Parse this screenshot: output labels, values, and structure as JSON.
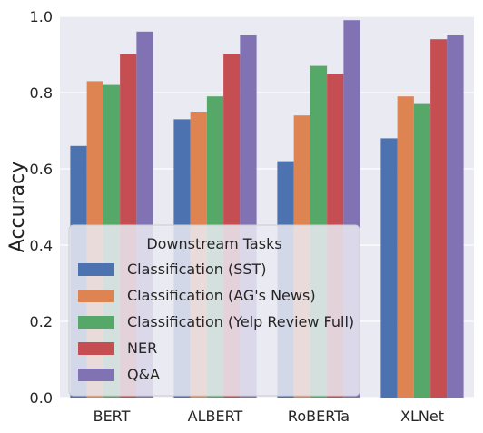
{
  "chart_data": {
    "type": "bar",
    "title": "",
    "xlabel": "",
    "ylabel": "Accuracy",
    "ylim": [
      0.0,
      1.0
    ],
    "yticks": [
      "0.0",
      "0.2",
      "0.4",
      "0.6",
      "0.8",
      "1.0"
    ],
    "grid": true,
    "categories": [
      "BERT",
      "ALBERT",
      "RoBERTa",
      "XLNet"
    ],
    "series": [
      {
        "name": "Classification (SST)",
        "color": "#4c72b0",
        "values": [
          0.66,
          0.73,
          0.62,
          0.68
        ]
      },
      {
        "name": "Classification (AG's News)",
        "color": "#dd8452",
        "values": [
          0.83,
          0.75,
          0.74,
          0.79
        ]
      },
      {
        "name": "Classification (Yelp Review Full)",
        "color": "#55a868",
        "values": [
          0.82,
          0.79,
          0.87,
          0.77
        ]
      },
      {
        "name": "NER",
        "color": "#c44e52",
        "values": [
          0.9,
          0.9,
          0.85,
          0.94
        ]
      },
      {
        "name": "Q&A",
        "color": "#8172b3",
        "values": [
          0.96,
          0.95,
          0.99,
          0.95
        ]
      }
    ],
    "legend": {
      "title": "Downstream Tasks",
      "placement": "bottom-left"
    },
    "colors": {
      "background": "#eaeaf2",
      "grid": "#ffffff"
    }
  }
}
